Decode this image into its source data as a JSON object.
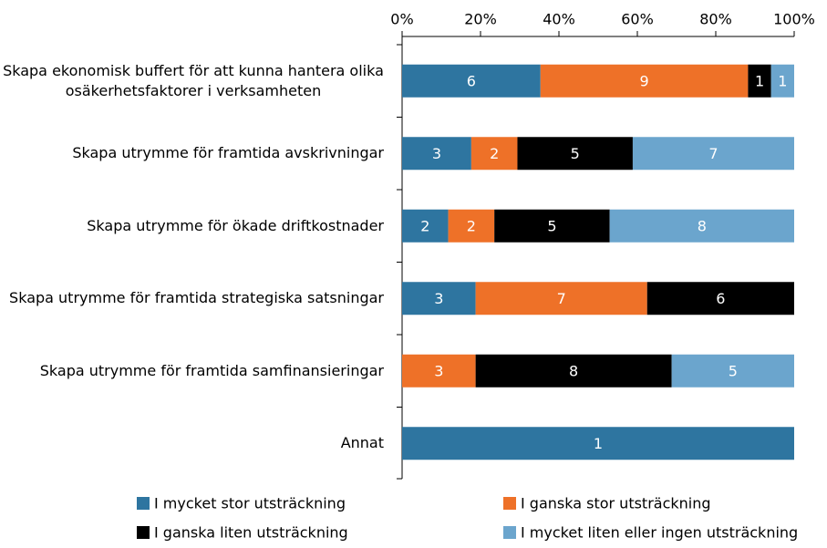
{
  "chart_data": {
    "type": "stacked_bar_horizontal",
    "stack": "percent",
    "categories": [
      "Skapa ekonomisk buffert för att kunna hantera olika osäkerhetsfaktorer i verksamheten",
      "Skapa utrymme för framtida avskrivningar",
      "Skapa utrymme för ökade driftkostnader",
      "Skapa utrymme för framtida strategiska satsningar",
      "Skapa utrymme för framtida samfinansieringar",
      "Annat"
    ],
    "series": [
      {
        "name": "I mycket stor utsträckning",
        "color": "#2e75a0",
        "values": [
          6,
          3,
          2,
          3,
          null,
          1
        ]
      },
      {
        "name": "I ganska stor utsträckning",
        "color": "#ee7128",
        "values": [
          9,
          2,
          2,
          7,
          3,
          null
        ]
      },
      {
        "name": "I ganska liten utsträckning",
        "color": "#000000",
        "values": [
          1,
          5,
          5,
          6,
          8,
          null
        ]
      },
      {
        "name": "I mycket liten eller ingen utsträckning",
        "color": "#6ba5cd",
        "values": [
          1,
          7,
          8,
          null,
          5,
          null
        ]
      }
    ],
    "xlim": [
      0,
      100
    ],
    "xticks": [
      {
        "value": 0,
        "label": "0%"
      },
      {
        "value": 20,
        "label": "20%"
      },
      {
        "value": 40,
        "label": "40%"
      },
      {
        "value": 60,
        "label": "60%"
      },
      {
        "value": 80,
        "label": "80%"
      },
      {
        "value": 100,
        "label": "100%"
      }
    ],
    "legend": "bottom"
  }
}
